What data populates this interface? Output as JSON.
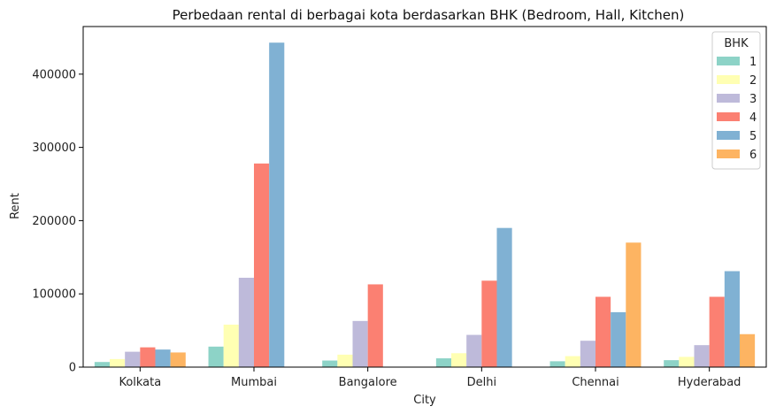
{
  "chart_data": {
    "type": "bar",
    "title": "Perbedaan rental di berbagai kota berdasarkan BHK (Bedroom, Hall, Kitchen)",
    "xlabel": "City",
    "ylabel": "Rent",
    "categories": [
      "Kolkata",
      "Mumbai",
      "Bangalore",
      "Delhi",
      "Chennai",
      "Hyderabad"
    ],
    "ylim": [
      0,
      465000
    ],
    "yticks": [
      0,
      100000,
      200000,
      300000,
      400000
    ],
    "ytick_labels": [
      "0",
      "100000",
      "200000",
      "300000",
      "400000"
    ],
    "legend_title": "BHK",
    "legend_position": "top-right",
    "grid": false,
    "series": [
      {
        "name": "1",
        "color": "#8dd3c7",
        "values": [
          7000,
          28000,
          9000,
          12000,
          8000,
          9500
        ]
      },
      {
        "name": "2",
        "color": "#ffffb3",
        "values": [
          11000,
          58000,
          17000,
          19000,
          15000,
          14000
        ]
      },
      {
        "name": "3",
        "color": "#bebada",
        "values": [
          21000,
          122000,
          63000,
          44000,
          36000,
          30000
        ]
      },
      {
        "name": "4",
        "color": "#fb8072",
        "values": [
          27000,
          278000,
          113000,
          118000,
          96000,
          96000
        ]
      },
      {
        "name": "5",
        "color": "#80b1d3",
        "values": [
          24000,
          443000,
          null,
          190000,
          75000,
          131000
        ]
      },
      {
        "name": "6",
        "color": "#fdb462",
        "values": [
          20000,
          null,
          null,
          null,
          170000,
          45000
        ]
      }
    ]
  }
}
